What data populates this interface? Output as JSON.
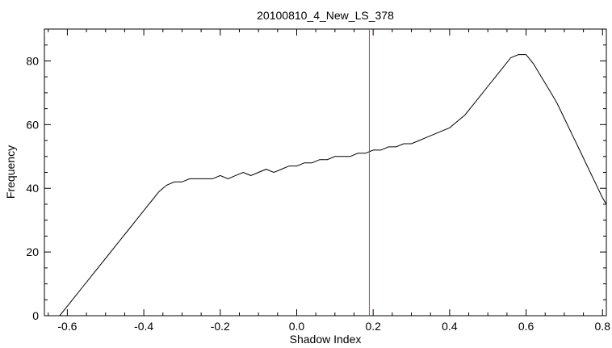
{
  "chart_data": {
    "type": "line",
    "title": "20100810_4_New_LS_378",
    "xlabel": "Shadow Index",
    "ylabel": "Frequency",
    "xlim": [
      -0.66,
      0.81
    ],
    "ylim": [
      0,
      90
    ],
    "x_ticks": [
      -0.6,
      -0.4,
      -0.2,
      0.0,
      0.2,
      0.4,
      0.6,
      0.8
    ],
    "x_tick_labels": [
      "-0.6",
      "-0.4",
      "-0.2",
      "0.0",
      "0.2",
      "0.4",
      "0.6",
      "0.8"
    ],
    "y_ticks": [
      0,
      20,
      40,
      60,
      80
    ],
    "y_tick_labels": [
      "0",
      "20",
      "40",
      "60",
      "80"
    ],
    "grid": false,
    "series": [
      {
        "color": "#000000",
        "x": [
          -0.62,
          -0.6,
          -0.58,
          -0.56,
          -0.54,
          -0.52,
          -0.5,
          -0.48,
          -0.46,
          -0.44,
          -0.42,
          -0.4,
          -0.38,
          -0.36,
          -0.34,
          -0.32,
          -0.3,
          -0.28,
          -0.26,
          -0.24,
          -0.22,
          -0.2,
          -0.18,
          -0.16,
          -0.14,
          -0.12,
          -0.1,
          -0.08,
          -0.06,
          -0.04,
          -0.02,
          0.0,
          0.02,
          0.04,
          0.06,
          0.08,
          0.1,
          0.12,
          0.14,
          0.16,
          0.18,
          0.2,
          0.22,
          0.24,
          0.26,
          0.28,
          0.3,
          0.32,
          0.34,
          0.36,
          0.38,
          0.4,
          0.42,
          0.44,
          0.46,
          0.48,
          0.5,
          0.52,
          0.54,
          0.56,
          0.58,
          0.6,
          0.62,
          0.64,
          0.66,
          0.68,
          0.7,
          0.72,
          0.74,
          0.76,
          0.78,
          0.8,
          0.81
        ],
        "values": [
          0,
          3,
          6,
          9,
          12,
          15,
          18,
          21,
          24,
          27,
          30,
          33,
          36,
          39,
          41,
          42,
          42,
          43,
          43,
          43,
          43,
          44,
          43,
          44,
          45,
          44,
          45,
          46,
          45,
          46,
          47,
          47,
          48,
          48,
          49,
          49,
          50,
          50,
          50,
          51,
          51,
          52,
          52,
          53,
          53,
          54,
          54,
          55,
          56,
          57,
          58,
          59,
          61,
          63,
          66,
          69,
          72,
          75,
          78,
          81,
          82,
          82,
          79,
          75,
          71,
          67,
          62,
          57,
          52,
          47,
          42,
          37,
          35
        ]
      }
    ],
    "reference_line": {
      "x": 0.19,
      "color": "#c0392b"
    }
  }
}
